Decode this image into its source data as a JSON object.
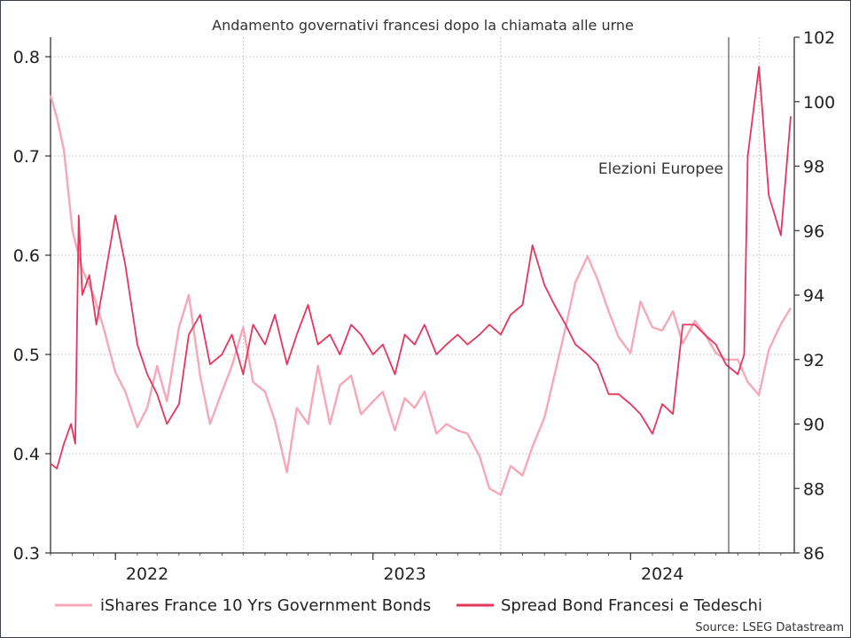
{
  "chart_data": {
    "type": "line",
    "title": "Andamento governativi francesi dopo la chiamata alle urne",
    "source": "Source: LSEG Datastream",
    "annotation": "Elezioni Europee",
    "x_ticks": [
      "2022",
      "2023",
      "2024"
    ],
    "left_axis": {
      "ylim": [
        0.3,
        0.8
      ],
      "ticks": [
        "0.3",
        "0.4",
        "0.5",
        "0.6",
        "0.7",
        "0.8"
      ]
    },
    "right_axis": {
      "ylim": [
        86,
        102
      ],
      "ticks": [
        "86",
        "88",
        "90",
        "92",
        "94",
        "96",
        "98",
        "100",
        "102"
      ]
    },
    "grid": true,
    "legend_position": "bottom",
    "colors": {
      "series_light": "#f7a8b8",
      "series_dark": "#e8355f",
      "axis": "#333333",
      "grid": "#bdbdbd"
    },
    "series": [
      {
        "name": "iShares France 10 Yrs Government Bonds",
        "axis": "right",
        "x": [
          "2021-10-01",
          "2021-10-10",
          "2021-10-20",
          "2021-11-01",
          "2021-11-15",
          "2021-12-01",
          "2021-12-15",
          "2022-01-01",
          "2022-01-15",
          "2022-02-01",
          "2022-02-15",
          "2022-03-01",
          "2022-03-15",
          "2022-04-01",
          "2022-04-15",
          "2022-05-01",
          "2022-05-15",
          "2022-06-01",
          "2022-06-15",
          "2022-07-01",
          "2022-07-15",
          "2022-08-01",
          "2022-08-15",
          "2022-09-01",
          "2022-09-15",
          "2022-10-01",
          "2022-10-15",
          "2022-11-01",
          "2022-11-15",
          "2022-12-01",
          "2022-12-15",
          "2023-01-01",
          "2023-01-15",
          "2023-02-01",
          "2023-02-15",
          "2023-03-01",
          "2023-03-15",
          "2023-04-01",
          "2023-04-15",
          "2023-05-01",
          "2023-05-15",
          "2023-06-01",
          "2023-06-15",
          "2023-07-01",
          "2023-07-15",
          "2023-08-01",
          "2023-08-15",
          "2023-09-01",
          "2023-09-15",
          "2023-10-01",
          "2023-10-15",
          "2023-11-01",
          "2023-11-15",
          "2023-12-01",
          "2023-12-15",
          "2024-01-01",
          "2024-01-15",
          "2024-02-01",
          "2024-02-15",
          "2024-03-01",
          "2024-03-15",
          "2024-04-01",
          "2024-04-15",
          "2024-05-01",
          "2024-05-15",
          "2024-06-01",
          "2024-06-15",
          "2024-07-01",
          "2024-07-15",
          "2024-08-01",
          "2024-08-15"
        ],
        "values": [
          100.2,
          99.5,
          98.5,
          96.0,
          94.8,
          94.0,
          93.0,
          91.6,
          91.0,
          89.9,
          90.5,
          91.8,
          90.7,
          93.0,
          94.0,
          91.5,
          90.0,
          91.0,
          91.8,
          93.0,
          91.3,
          91.0,
          90.1,
          88.5,
          90.5,
          90.0,
          91.8,
          90.0,
          91.2,
          91.5,
          90.3,
          90.7,
          91.0,
          89.8,
          90.8,
          90.5,
          91.0,
          89.7,
          90.0,
          89.8,
          89.7,
          89.0,
          88.0,
          87.8,
          88.7,
          88.4,
          89.3,
          90.2,
          91.5,
          93.0,
          94.4,
          95.2,
          94.5,
          93.5,
          92.7,
          92.2,
          93.8,
          93.0,
          92.9,
          93.5,
          92.5,
          93.2,
          92.8,
          92.2,
          92.0,
          92.0,
          91.3,
          90.9,
          92.3,
          93.1,
          93.6
        ]
      },
      {
        "name": "Spread Bond Francesi e Tedeschi",
        "axis": "left",
        "x": [
          "2021-10-01",
          "2021-10-10",
          "2021-10-20",
          "2021-10-30",
          "2021-11-05",
          "2021-11-10",
          "2021-11-15",
          "2021-11-25",
          "2021-12-05",
          "2021-12-15",
          "2022-01-01",
          "2022-01-15",
          "2022-02-01",
          "2022-02-15",
          "2022-03-01",
          "2022-03-15",
          "2022-04-01",
          "2022-04-15",
          "2022-05-01",
          "2022-05-15",
          "2022-06-01",
          "2022-06-15",
          "2022-07-01",
          "2022-07-15",
          "2022-08-01",
          "2022-08-15",
          "2022-09-01",
          "2022-09-15",
          "2022-10-01",
          "2022-10-15",
          "2022-11-01",
          "2022-11-15",
          "2022-12-01",
          "2022-12-15",
          "2023-01-01",
          "2023-01-15",
          "2023-02-01",
          "2023-02-15",
          "2023-03-01",
          "2023-03-15",
          "2023-04-01",
          "2023-04-15",
          "2023-05-01",
          "2023-05-15",
          "2023-06-01",
          "2023-06-15",
          "2023-07-01",
          "2023-07-15",
          "2023-08-01",
          "2023-08-15",
          "2023-09-01",
          "2023-09-15",
          "2023-10-01",
          "2023-10-15",
          "2023-11-01",
          "2023-11-15",
          "2023-12-01",
          "2023-12-15",
          "2024-01-01",
          "2024-01-15",
          "2024-02-01",
          "2024-02-15",
          "2024-03-01",
          "2024-03-15",
          "2024-04-01",
          "2024-04-15",
          "2024-05-01",
          "2024-05-15",
          "2024-06-01",
          "2024-06-10",
          "2024-06-15",
          "2024-07-01",
          "2024-07-15",
          "2024-08-01",
          "2024-08-15"
        ],
        "values": [
          0.39,
          0.385,
          0.41,
          0.43,
          0.41,
          0.64,
          0.56,
          0.58,
          0.53,
          0.57,
          0.64,
          0.59,
          0.51,
          0.48,
          0.46,
          0.43,
          0.45,
          0.52,
          0.54,
          0.49,
          0.5,
          0.52,
          0.48,
          0.53,
          0.51,
          0.54,
          0.49,
          0.52,
          0.55,
          0.51,
          0.52,
          0.5,
          0.53,
          0.52,
          0.5,
          0.51,
          0.48,
          0.52,
          0.51,
          0.53,
          0.5,
          0.51,
          0.52,
          0.51,
          0.52,
          0.53,
          0.52,
          0.54,
          0.55,
          0.61,
          0.57,
          0.55,
          0.53,
          0.51,
          0.5,
          0.49,
          0.46,
          0.46,
          0.45,
          0.44,
          0.42,
          0.45,
          0.44,
          0.53,
          0.53,
          0.52,
          0.51,
          0.49,
          0.48,
          0.5,
          0.7,
          0.79,
          0.66,
          0.62,
          0.74
        ]
      }
    ]
  }
}
